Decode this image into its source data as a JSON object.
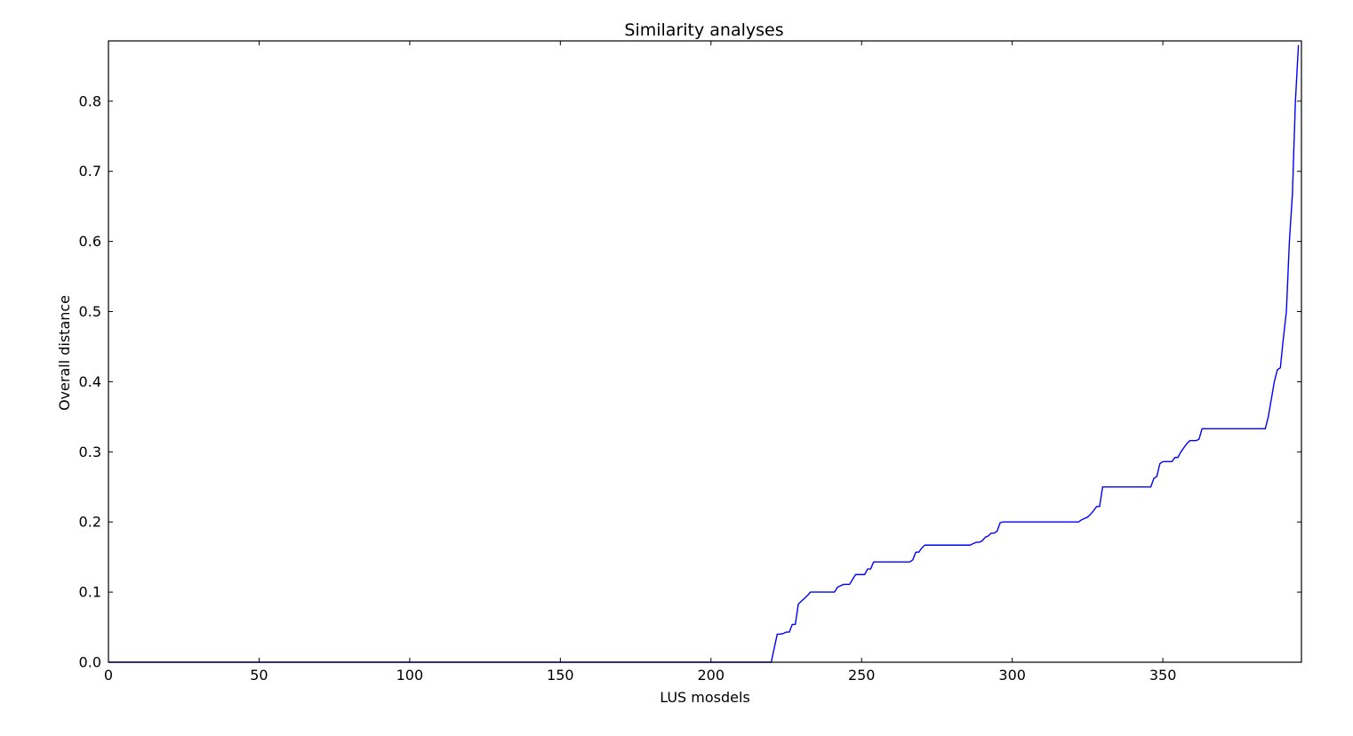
{
  "chart_data": {
    "type": "line",
    "title": "Similarity analyses",
    "xlabel": "LUS mosdels",
    "ylabel": "Overall distance",
    "xlim": [
      0,
      396
    ],
    "ylim": [
      0,
      0.886
    ],
    "xticks": [
      0,
      50,
      100,
      150,
      200,
      250,
      300,
      350
    ],
    "xtick_labels": [
      "0",
      "50",
      "100",
      "150",
      "200",
      "250",
      "300",
      "350"
    ],
    "yticks": [
      0.0,
      0.1,
      0.2,
      0.3,
      0.4,
      0.5,
      0.6,
      0.7,
      0.8
    ],
    "ytick_labels": [
      "0.0",
      "0.1",
      "0.2",
      "0.3",
      "0.4",
      "0.5",
      "0.6",
      "0.7",
      "0.8"
    ],
    "grid": false,
    "line_color": "#0000ff",
    "series": [
      {
        "x": [
          0,
          220,
          221,
          222,
          223,
          224,
          225,
          226,
          227,
          228,
          229,
          230,
          231,
          232,
          233,
          234,
          241,
          242,
          243,
          244,
          246,
          247,
          248,
          250,
          251,
          252,
          253,
          254,
          266,
          267,
          268,
          269,
          270,
          271,
          272,
          273,
          286,
          287,
          288,
          289,
          290,
          291,
          292,
          293,
          294,
          295,
          296,
          297,
          298,
          322,
          323,
          324,
          325,
          326,
          327,
          328,
          329,
          330,
          346,
          347,
          348,
          349,
          350,
          351,
          352,
          353,
          354,
          355,
          356,
          357,
          358,
          359,
          360,
          361,
          362,
          363,
          384,
          385,
          386,
          387,
          388,
          389,
          390,
          391,
          392,
          393,
          394,
          395
        ],
        "values": [
          0,
          0,
          0.02,
          0.04,
          0.04,
          0.041,
          0.043,
          0.043,
          0.054,
          0.054,
          0.083,
          0.087,
          0.091,
          0.095,
          0.1,
          0.1,
          0.1,
          0.107,
          0.109,
          0.111,
          0.111,
          0.118,
          0.125,
          0.125,
          0.125,
          0.133,
          0.133,
          0.143,
          0.143,
          0.146,
          0.157,
          0.157,
          0.163,
          0.167,
          0.167,
          0.167,
          0.167,
          0.169,
          0.171,
          0.171,
          0.173,
          0.178,
          0.18,
          0.184,
          0.184,
          0.187,
          0.199,
          0.2,
          0.2,
          0.2,
          0.203,
          0.205,
          0.207,
          0.211,
          0.216,
          0.222,
          0.222,
          0.25,
          0.25,
          0.262,
          0.265,
          0.283,
          0.286,
          0.286,
          0.286,
          0.286,
          0.292,
          0.292,
          0.3,
          0.306,
          0.312,
          0.316,
          0.316,
          0.316,
          0.318,
          0.333,
          0.333,
          0.35,
          0.375,
          0.4,
          0.417,
          0.42,
          0.462,
          0.5,
          0.6,
          0.667,
          0.8,
          0.88
        ]
      }
    ]
  }
}
